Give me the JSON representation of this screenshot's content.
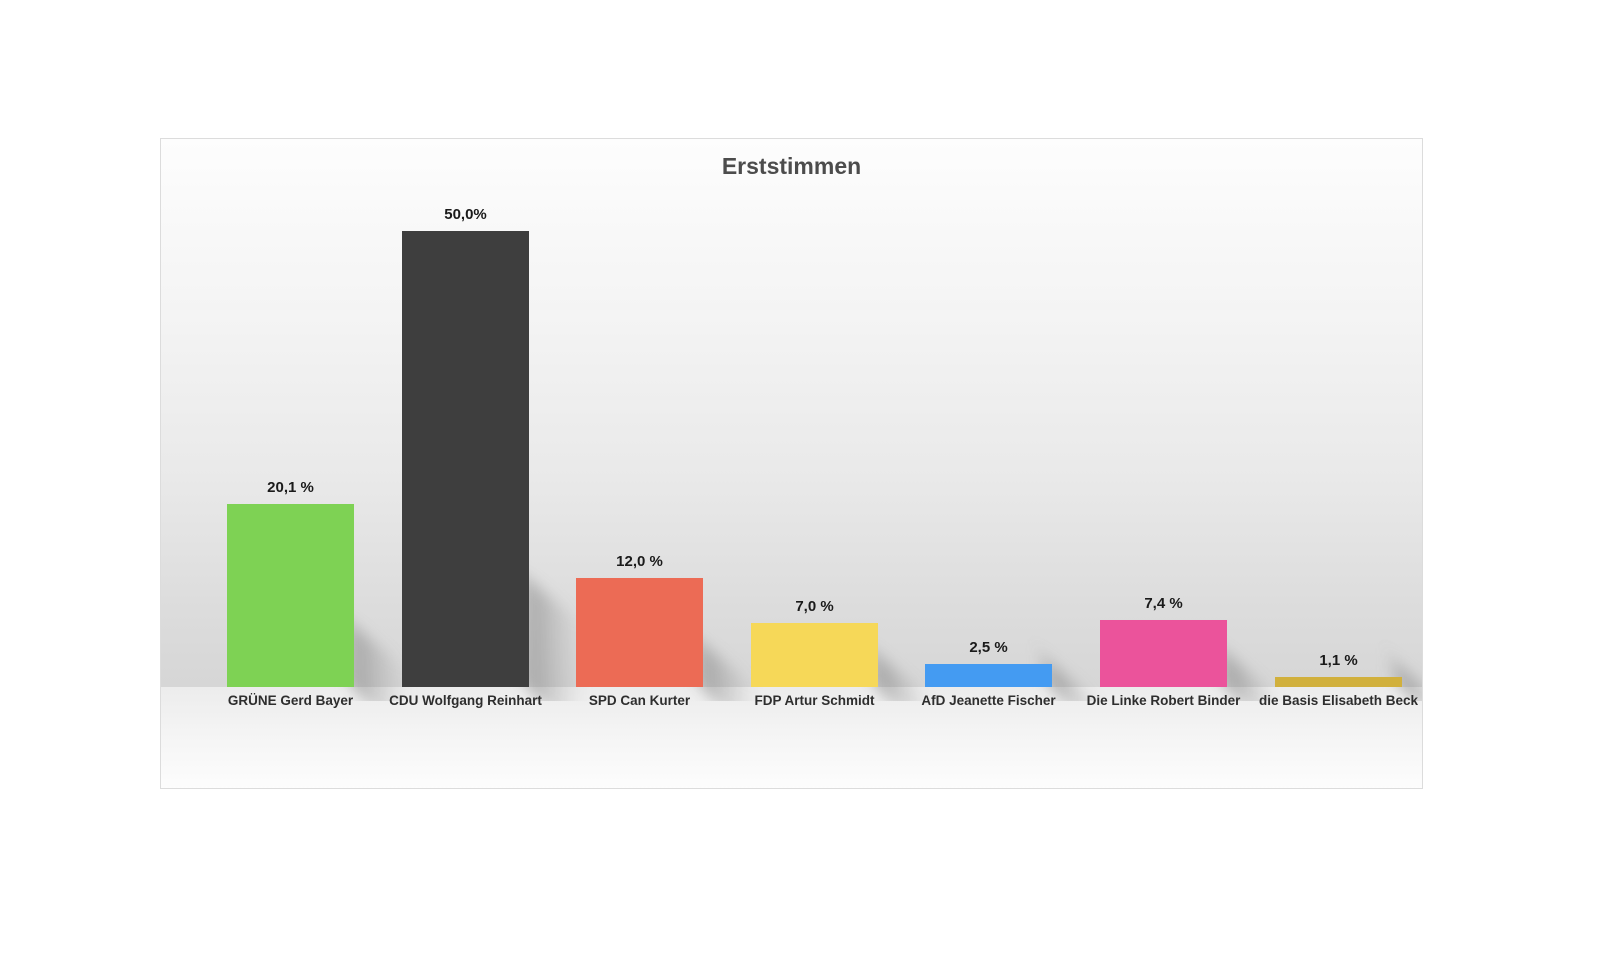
{
  "chart_data": {
    "type": "bar",
    "title": "Erststimmen",
    "categories": [
      "GRÜNE Gerd Bayer",
      "CDU Wolfgang Reinhart",
      "SPD Can Kurter",
      "FDP Artur Schmidt",
      "AfD Jeanette Fischer",
      "Die Linke Robert Binder",
      "die Basis Elisabeth Beck"
    ],
    "values": [
      20.1,
      50.0,
      12.0,
      7.0,
      2.5,
      7.4,
      1.1
    ],
    "value_labels": [
      "20,1 %",
      "50,0%",
      "12,0 %",
      "7,0 %",
      "2,5 %",
      "7,4 %",
      "1,1 %"
    ],
    "colors": [
      "#7ed254",
      "#3e3e3e",
      "#ec6b55",
      "#f6d858",
      "#449bf2",
      "#eb539b",
      "#d1b03c"
    ],
    "slugs": [
      "gruene",
      "cdu",
      "spd",
      "fdp",
      "afd",
      "die-linke",
      "die-basis"
    ],
    "xlabel": "",
    "ylabel": "",
    "ylim": [
      0,
      50
    ],
    "grid": false,
    "legend": "none",
    "value_label_position": "above-bar",
    "title_color": "#4c4c4c"
  }
}
